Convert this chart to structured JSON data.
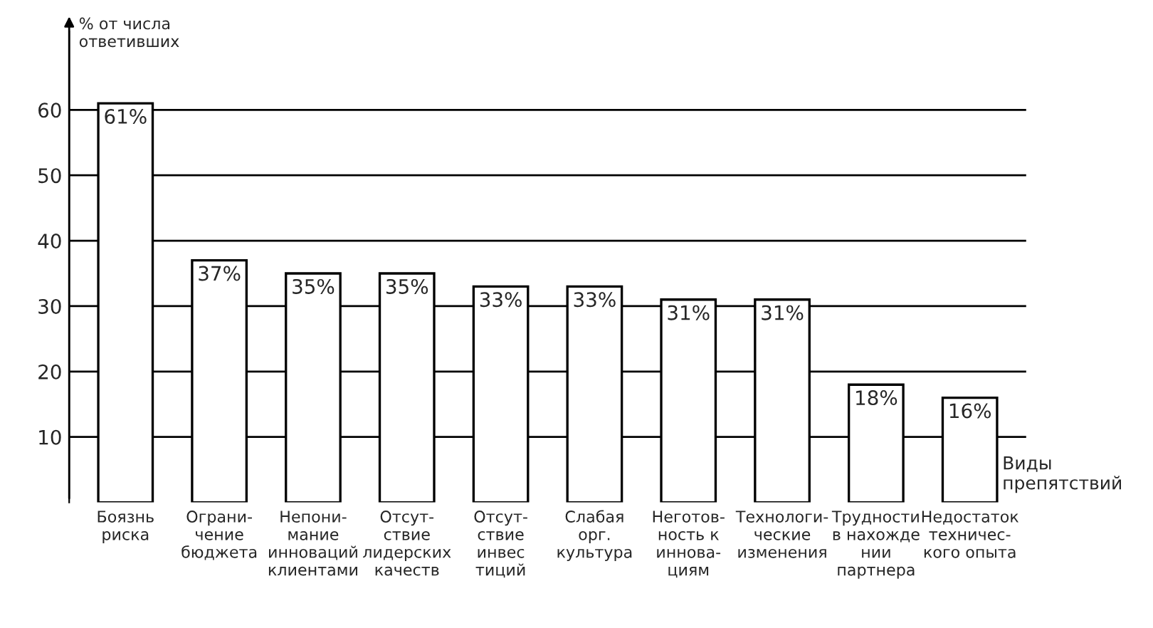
{
  "chart_data": {
    "type": "bar",
    "ylabel": "% от числа\nответивших",
    "xlabel": "Виды\nпрепятствий",
    "categories": [
      "Боязнь\nриска",
      "Ограни-\nчение\nбюджета",
      "Непони-\nмание\nинноваций\nклиентами",
      "Отсут-\nствие\nлидерских\nкачеств",
      "Отсут-\nствие\nинвес\nтиций",
      "Слабая\nорг.\nкультура",
      "Неготов-\nность к\nиннова-\nциям",
      "Технологи-\nческие\nизменения",
      "Трудности\nв нахожде\nнии\nпартнера",
      "Недостаток\nтехничес-\nкого опыта"
    ],
    "values": [
      61,
      37,
      35,
      35,
      33,
      33,
      31,
      31,
      18,
      16
    ],
    "value_labels": [
      "61%",
      "37%",
      "35%",
      "35%",
      "33%",
      "33%",
      "31%",
      "31%",
      "18%",
      "16%"
    ],
    "color": "#ffffff",
    "ylim": [
      0,
      72
    ],
    "yticks": [
      10,
      20,
      30,
      40,
      50,
      60
    ],
    "grid": "y"
  }
}
